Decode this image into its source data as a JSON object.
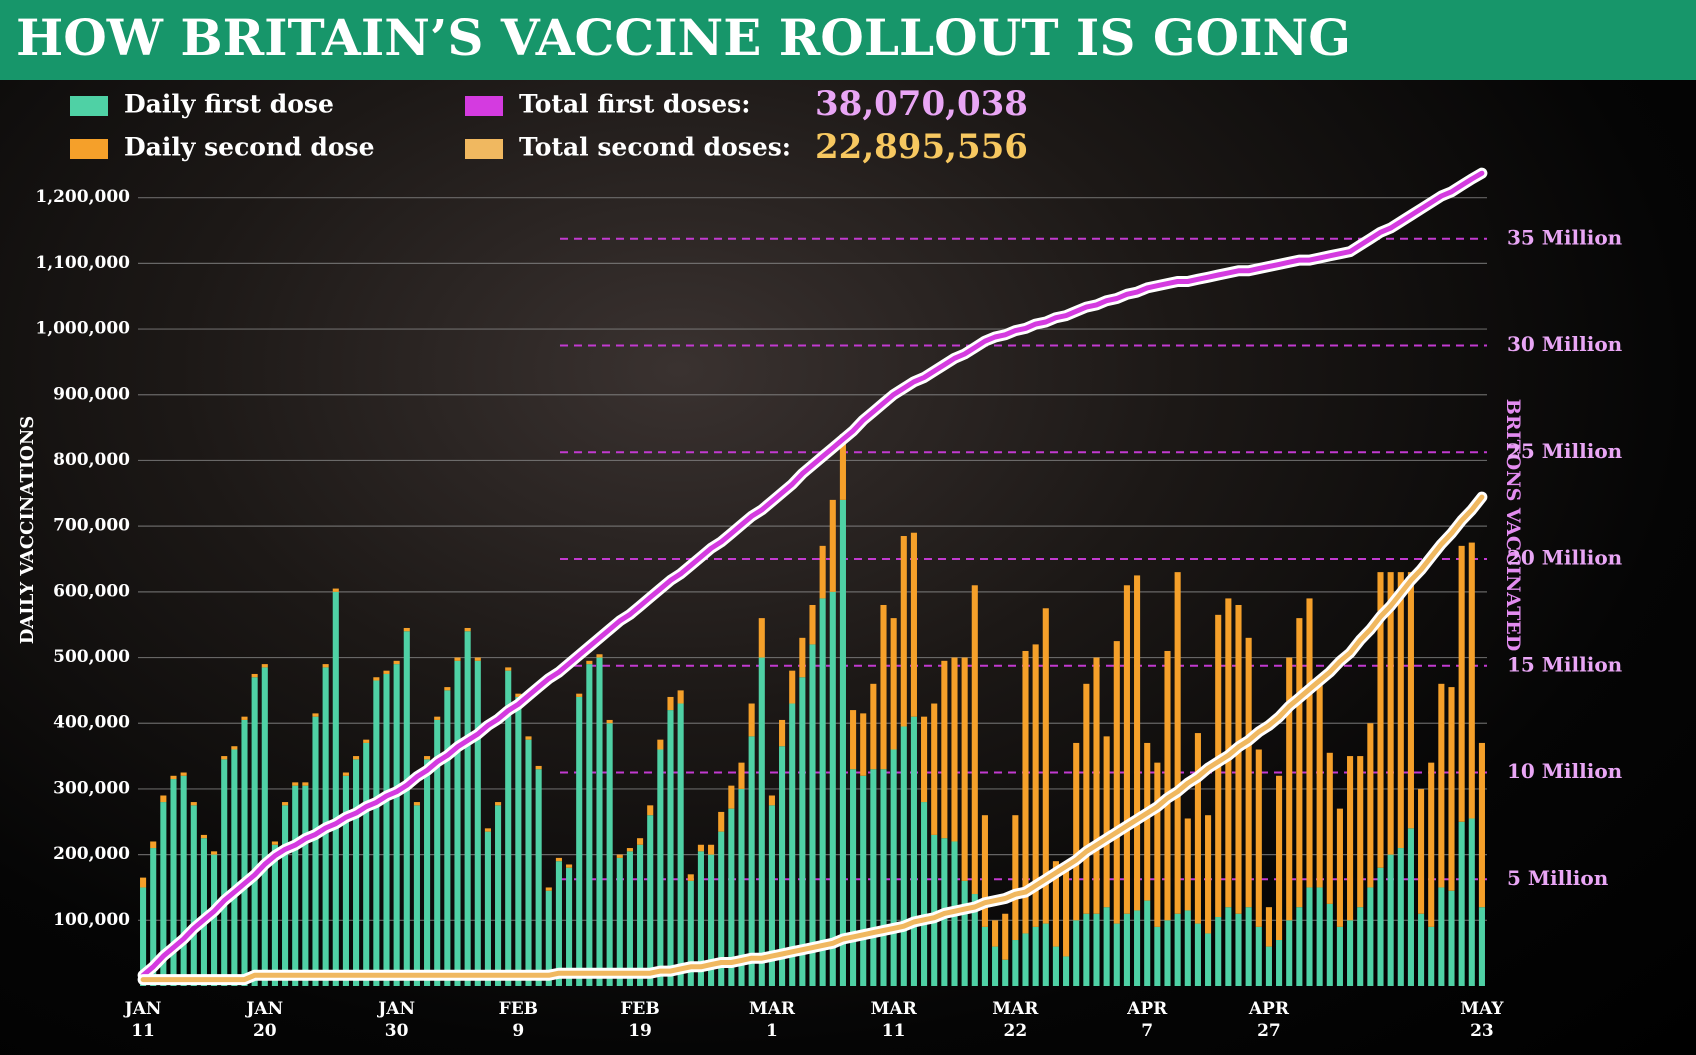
{
  "chart_data": {
    "type": "bar",
    "title": "HOW BRITAIN’S VACCINE ROLLOUT IS GOING",
    "ylabel": "DAILY VACCINATIONS",
    "y2label": "BRITONS VACCINATED",
    "categories": [
      "JAN\n11",
      null,
      null,
      null,
      null,
      null,
      null,
      null,
      null,
      null,
      null,
      null,
      "JAN\n20",
      null,
      null,
      null,
      null,
      null,
      null,
      null,
      null,
      null,
      null,
      null,
      null,
      "JAN\n30",
      null,
      null,
      null,
      null,
      null,
      null,
      null,
      null,
      null,
      null,
      null,
      "FEB\n9",
      null,
      null,
      null,
      null,
      null,
      null,
      null,
      null,
      null,
      null,
      null,
      "FEB\n19",
      null,
      null,
      null,
      null,
      null,
      null,
      null,
      null,
      null,
      null,
      null,
      null,
      "MAR\n1",
      null,
      null,
      null,
      null,
      null,
      null,
      null,
      null,
      null,
      null,
      null,
      "MAR\n11",
      null,
      null,
      null,
      null,
      null,
      null,
      null,
      null,
      null,
      null,
      null,
      "MAR\n22",
      null,
      null,
      null,
      null,
      null,
      null,
      null,
      null,
      null,
      null,
      null,
      null,
      "APR\n7",
      null,
      null,
      null,
      null,
      null,
      null,
      null,
      null,
      null,
      null,
      null,
      "APR\n27",
      null,
      null,
      null,
      null,
      null,
      null,
      null,
      null,
      null,
      null,
      null,
      null,
      null,
      null,
      null,
      null,
      null,
      null,
      null,
      null,
      "MAY\n23"
    ],
    "ylim": [
      0,
      1300000
    ],
    "yticks": [
      {
        "value": 100000,
        "label": "100,000"
      },
      {
        "value": 200000,
        "label": "200,000"
      },
      {
        "value": 300000,
        "label": "300,000"
      },
      {
        "value": 400000,
        "label": "400,000"
      },
      {
        "value": 500000,
        "label": "500,000"
      },
      {
        "value": 600000,
        "label": "600,000"
      },
      {
        "value": 700000,
        "label": "700,000"
      },
      {
        "value": 800000,
        "label": "800,000"
      },
      {
        "value": 900000,
        "label": "900,000"
      },
      {
        "value": 1000000,
        "label": "1,000,000"
      },
      {
        "value": 1100000,
        "label": "1,100,000"
      },
      {
        "value": 1200000,
        "label": "1,200,000"
      }
    ],
    "y2lim": [
      0,
      40
    ],
    "y2ticks": [
      {
        "value": 5,
        "label": "5 Million"
      },
      {
        "value": 10,
        "label": "10 Million"
      },
      {
        "value": 15,
        "label": "15 Million"
      },
      {
        "value": 20,
        "label": "20 Million"
      },
      {
        "value": 25,
        "label": "25 Million"
      },
      {
        "value": 30,
        "label": "30 Million"
      },
      {
        "value": 35,
        "label": "35 Million"
      }
    ],
    "grid": true,
    "stacked": true,
    "series": [
      {
        "name": "Daily first dose",
        "color": "#4fd1a5",
        "values": [
          150000,
          210000,
          280000,
          315000,
          320000,
          275000,
          225000,
          200000,
          345000,
          360000,
          405000,
          470000,
          485000,
          215000,
          275000,
          305000,
          305000,
          410000,
          485000,
          600000,
          320000,
          345000,
          370000,
          465000,
          475000,
          490000,
          540000,
          275000,
          345000,
          405000,
          450000,
          495000,
          540000,
          495000,
          235000,
          275000,
          480000,
          440000,
          375000,
          330000,
          145000,
          190000,
          180000,
          440000,
          490000,
          500000,
          400000,
          195000,
          205000,
          215000,
          260000,
          360000,
          420000,
          430000,
          160000,
          205000,
          200000,
          235000,
          270000,
          300000,
          380000,
          500000,
          275000,
          365000,
          430000,
          470000,
          520000,
          590000,
          600000,
          740000,
          330000,
          320000,
          330000,
          330000,
          360000,
          395000,
          410000,
          280000,
          230000,
          225000,
          220000,
          160000,
          140000,
          90000,
          60000,
          40000,
          70000,
          80000,
          90000,
          95000,
          60000,
          45000,
          100000,
          110000,
          110000,
          120000,
          95000,
          110000,
          115000,
          130000,
          90000,
          100000,
          110000,
          115000,
          95000,
          80000,
          105000,
          120000,
          110000,
          120000,
          90000,
          60000,
          70000,
          100000,
          120000,
          150000,
          150000,
          125000,
          90000,
          100000,
          120000,
          150000,
          180000,
          200000,
          210000,
          240000,
          110000,
          90000,
          150000,
          145000,
          250000,
          255000,
          120000
        ]
      },
      {
        "name": "Daily second dose",
        "color": "#f5a02a",
        "values": [
          15000,
          10000,
          10000,
          5000,
          5000,
          5000,
          5000,
          5000,
          5000,
          5000,
          5000,
          5000,
          5000,
          5000,
          5000,
          5000,
          5000,
          5000,
          5000,
          5000,
          5000,
          5000,
          5000,
          5000,
          5000,
          5000,
          5000,
          5000,
          5000,
          5000,
          5000,
          5000,
          5000,
          5000,
          5000,
          5000,
          5000,
          5000,
          5000,
          5000,
          5000,
          5000,
          5000,
          5000,
          5000,
          5000,
          5000,
          5000,
          5000,
          10000,
          15000,
          15000,
          20000,
          20000,
          10000,
          10000,
          15000,
          30000,
          35000,
          40000,
          50000,
          60000,
          15000,
          40000,
          50000,
          60000,
          60000,
          80000,
          140000,
          100000,
          90000,
          95000,
          130000,
          250000,
          200000,
          290000,
          280000,
          130000,
          200000,
          270000,
          280000,
          340000,
          470000,
          170000,
          40000,
          70000,
          190000,
          430000,
          430000,
          480000,
          130000,
          140000,
          270000,
          350000,
          390000,
          260000,
          430000,
          500000,
          510000,
          240000,
          250000,
          410000,
          520000,
          140000,
          290000,
          180000,
          460000,
          470000,
          470000,
          410000,
          270000,
          60000,
          250000,
          400000,
          440000,
          440000,
          310000,
          230000,
          180000,
          250000,
          230000,
          250000,
          450000,
          430000,
          420000,
          390000,
          190000,
          250000,
          310000,
          310000,
          420000,
          420000,
          250000
        ]
      },
      {
        "name": "Total first doses:",
        "type": "line",
        "axis": "y2",
        "color": "#d43be0",
        "total": "38,070,038",
        "total_color": "#e9a6f5",
        "values": [
          0.5,
          0.9,
          1.4,
          1.8,
          2.2,
          2.7,
          3.1,
          3.5,
          4.0,
          4.4,
          4.8,
          5.2,
          5.7,
          6.1,
          6.4,
          6.6,
          6.9,
          7.1,
          7.4,
          7.6,
          7.9,
          8.1,
          8.4,
          8.6,
          8.9,
          9.1,
          9.4,
          9.8,
          10.1,
          10.5,
          10.8,
          11.2,
          11.5,
          11.8,
          12.2,
          12.5,
          12.9,
          13.2,
          13.6,
          14.0,
          14.4,
          14.7,
          15.1,
          15.5,
          15.9,
          16.3,
          16.7,
          17.1,
          17.4,
          17.8,
          18.2,
          18.6,
          19.0,
          19.3,
          19.7,
          20.1,
          20.5,
          20.8,
          21.2,
          21.6,
          22.0,
          22.3,
          22.7,
          23.1,
          23.5,
          24.0,
          24.4,
          24.8,
          25.2,
          25.6,
          26.0,
          26.5,
          26.9,
          27.3,
          27.7,
          28.0,
          28.3,
          28.5,
          28.8,
          29.1,
          29.4,
          29.6,
          29.9,
          30.2,
          30.4,
          30.5,
          30.7,
          30.8,
          31.0,
          31.1,
          31.3,
          31.4,
          31.6,
          31.8,
          31.9,
          32.1,
          32.2,
          32.4,
          32.5,
          32.7,
          32.8,
          32.9,
          33.0,
          33.0,
          33.1,
          33.2,
          33.3,
          33.4,
          33.5,
          33.5,
          33.6,
          33.7,
          33.8,
          33.9,
          34.0,
          34.0,
          34.1,
          34.2,
          34.3,
          34.4,
          34.7,
          35.0,
          35.3,
          35.5,
          35.8,
          36.1,
          36.4,
          36.7,
          37.0,
          37.2,
          37.5,
          37.8,
          38.07
        ]
      },
      {
        "name": "Total second doses:",
        "type": "line",
        "axis": "y2",
        "color": "#f0b860",
        "total": "22,895,556",
        "total_color": "#f7c860",
        "values": [
          0.3,
          0.3,
          0.3,
          0.3,
          0.3,
          0.3,
          0.3,
          0.3,
          0.3,
          0.3,
          0.3,
          0.5,
          0.5,
          0.5,
          0.5,
          0.5,
          0.5,
          0.5,
          0.5,
          0.5,
          0.5,
          0.5,
          0.5,
          0.5,
          0.5,
          0.5,
          0.5,
          0.5,
          0.5,
          0.5,
          0.5,
          0.5,
          0.5,
          0.5,
          0.5,
          0.5,
          0.5,
          0.5,
          0.5,
          0.5,
          0.5,
          0.6,
          0.6,
          0.6,
          0.6,
          0.6,
          0.6,
          0.6,
          0.6,
          0.6,
          0.6,
          0.7,
          0.7,
          0.8,
          0.9,
          0.9,
          1.0,
          1.1,
          1.1,
          1.2,
          1.3,
          1.3,
          1.4,
          1.5,
          1.6,
          1.7,
          1.8,
          1.9,
          2.0,
          2.2,
          2.3,
          2.4,
          2.5,
          2.6,
          2.7,
          2.8,
          3.0,
          3.1,
          3.2,
          3.4,
          3.5,
          3.6,
          3.7,
          3.9,
          4.0,
          4.1,
          4.3,
          4.4,
          4.7,
          5.0,
          5.3,
          5.6,
          5.9,
          6.3,
          6.6,
          6.9,
          7.2,
          7.5,
          7.8,
          8.1,
          8.4,
          8.8,
          9.1,
          9.5,
          9.8,
          10.2,
          10.5,
          10.8,
          11.2,
          11.5,
          11.9,
          12.2,
          12.6,
          13.1,
          13.5,
          13.9,
          14.3,
          14.7,
          15.2,
          15.6,
          16.2,
          16.7,
          17.3,
          17.8,
          18.4,
          19.0,
          19.5,
          20.1,
          20.7,
          21.2,
          21.8,
          22.3,
          22.9
        ]
      }
    ]
  }
}
